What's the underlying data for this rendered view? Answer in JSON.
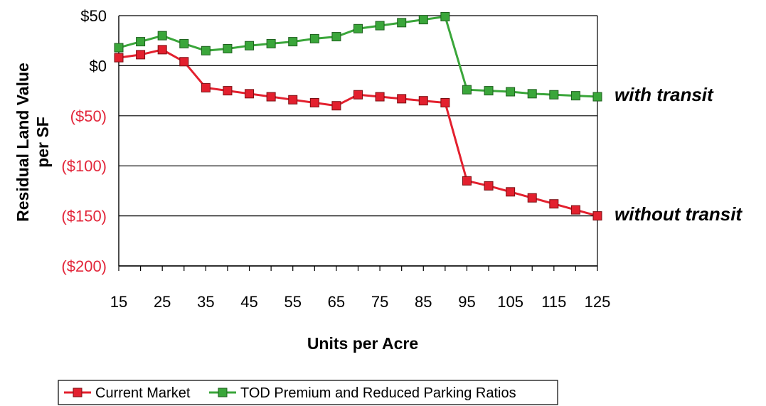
{
  "chart_data": {
    "type": "line",
    "xlabel": "Units per Acre",
    "ylabel": "Residual Land Value per SF",
    "ylabel_lines": [
      "Residual Land Value",
      "per SF"
    ],
    "ylim": [
      -200,
      50
    ],
    "yticks": [
      50,
      0,
      -50,
      -100,
      -150,
      -200
    ],
    "ytick_labels": [
      "$50",
      "$0",
      "($50)",
      "($100)",
      "($150)",
      "($200)"
    ],
    "negative_tick_color": "#e3263a",
    "xtick_labels": [
      "15",
      "25",
      "35",
      "45",
      "55",
      "65",
      "75",
      "85",
      "95",
      "105",
      "115",
      "125"
    ],
    "x": [
      15,
      20,
      25,
      30,
      35,
      40,
      45,
      50,
      55,
      60,
      65,
      70,
      75,
      80,
      85,
      90,
      95,
      100,
      105,
      110,
      115,
      120,
      125
    ],
    "grid": true,
    "legend_position": "bottom",
    "series": [
      {
        "name": "Current Market",
        "color": "#e3202e",
        "marker": "square",
        "values": [
          8,
          11,
          16,
          4,
          -22,
          -25,
          -28,
          -31,
          -34,
          -37,
          -40,
          -29,
          -31,
          -33,
          -35,
          -37,
          -115,
          -120,
          -126,
          -132,
          -138,
          -144,
          -150
        ]
      },
      {
        "name": "TOD Premium and Reduced Parking Ratios",
        "color": "#3aa63a",
        "marker": "square",
        "values": [
          18,
          24,
          30,
          22,
          15,
          17,
          20,
          22,
          24,
          27,
          29,
          37,
          40,
          43,
          46,
          49,
          -24,
          -25,
          -26,
          -28,
          -29,
          -30,
          -31
        ]
      }
    ],
    "annotations": [
      {
        "text": "with transit",
        "series": 1
      },
      {
        "text": "without transit",
        "series": 0
      }
    ]
  }
}
